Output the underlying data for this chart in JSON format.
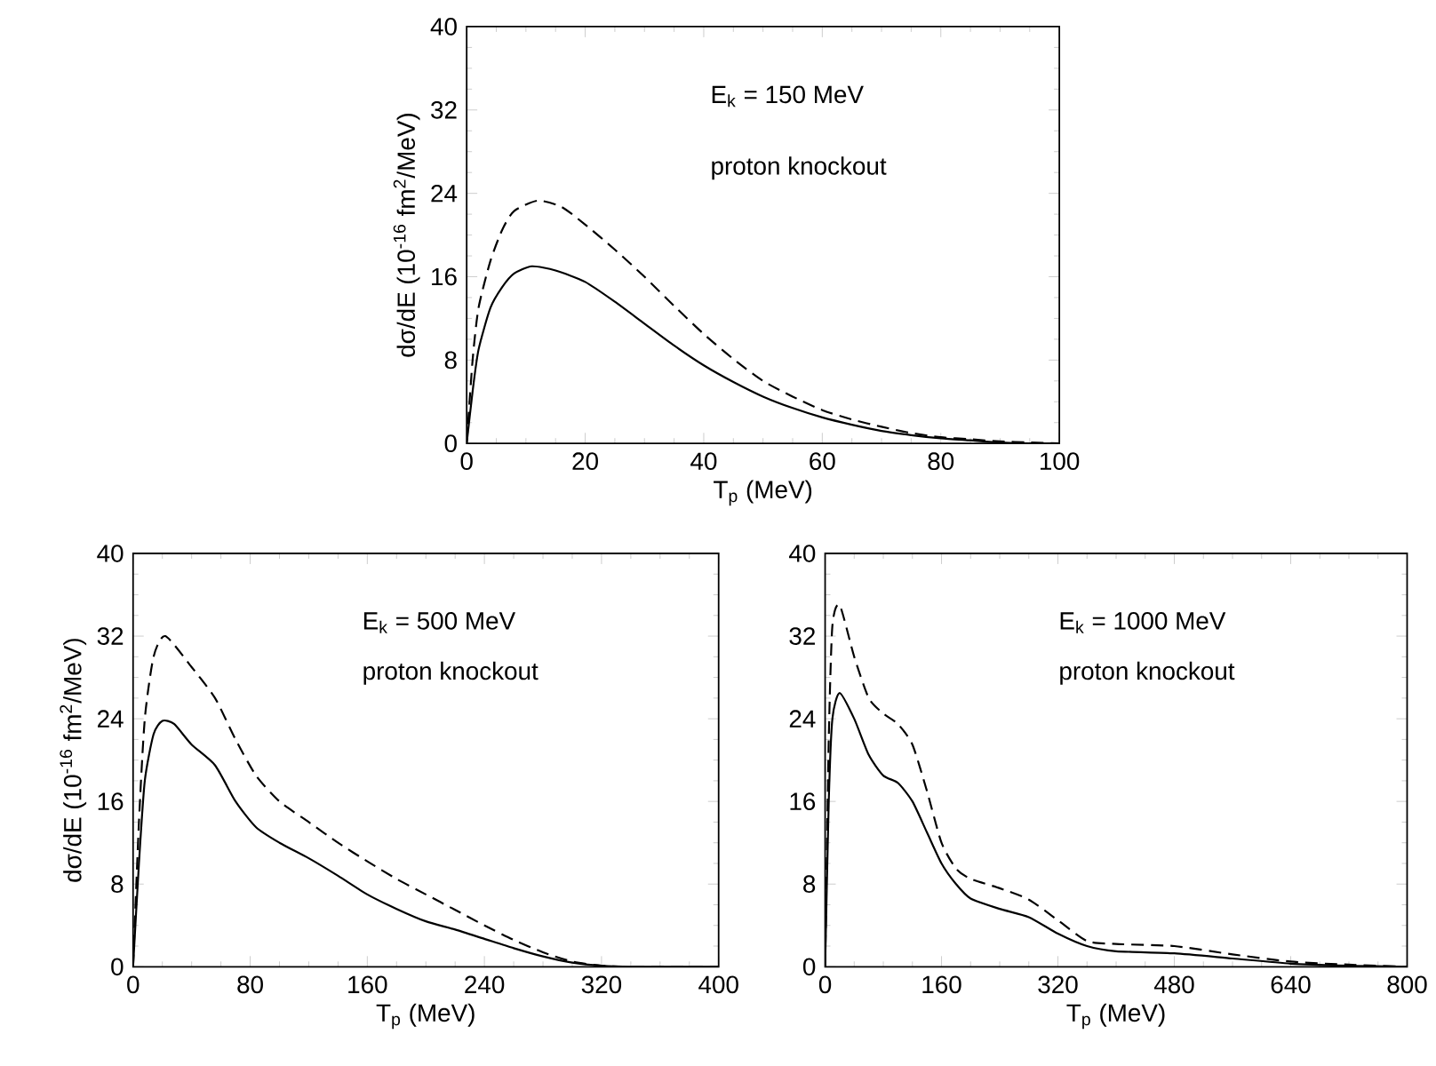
{
  "chart_data": [
    {
      "type": "line",
      "xlabel": "T$_{p}$ (MeV)",
      "ylabel": "dσ/dE (10$^{-16}$ fm$^{2}$/MeV)",
      "annotations": [
        "E$_{k}$ = 150 MeV",
        "proton knockout"
      ],
      "xlim": [
        0,
        100
      ],
      "ylim": [
        0,
        40
      ],
      "xticks": [
        0,
        20,
        40,
        60,
        80,
        100
      ],
      "yticks": [
        0,
        8,
        16,
        24,
        32,
        40
      ],
      "series": [
        {
          "color": "#000000",
          "line_style": "solid",
          "x": [
            0,
            1,
            2,
            4,
            6,
            8,
            11,
            15,
            20,
            25,
            30,
            35,
            40,
            45,
            50,
            55,
            60,
            65,
            70,
            75,
            80,
            85,
            90,
            95,
            100
          ],
          "values": [
            0,
            5,
            9,
            13,
            15,
            16.3,
            17,
            16.6,
            15.5,
            13.6,
            11.5,
            9.4,
            7.5,
            5.9,
            4.5,
            3.4,
            2.5,
            1.8,
            1.2,
            0.8,
            0.5,
            0.3,
            0.1,
            0,
            0
          ]
        },
        {
          "color": "#000000",
          "line_style": "dashed",
          "x": [
            0,
            1,
            2,
            4,
            6,
            8,
            12,
            16,
            20,
            25,
            30,
            35,
            40,
            45,
            50,
            55,
            60,
            65,
            70,
            75,
            80,
            85,
            90,
            95,
            100
          ],
          "values": [
            0,
            8,
            13,
            17.5,
            20.5,
            22.3,
            23.3,
            22.7,
            21,
            18.6,
            16,
            13.2,
            10.5,
            8.1,
            6,
            4.5,
            3.2,
            2.3,
            1.6,
            1,
            0.6,
            0.4,
            0.2,
            0.1,
            0
          ]
        }
      ]
    },
    {
      "type": "line",
      "xlabel": "T$_{p}$ (MeV)",
      "ylabel": "dσ/dE (10$^{-16}$ fm$^{2}$/MeV)",
      "annotations": [
        "E$_{k}$ = 500 MeV",
        "proton knockout"
      ],
      "xlim": [
        0,
        400
      ],
      "ylim": [
        0,
        40
      ],
      "xticks": [
        0,
        80,
        160,
        240,
        320,
        400
      ],
      "yticks": [
        0,
        8,
        16,
        24,
        32,
        40
      ],
      "series": [
        {
          "color": "#000000",
          "line_style": "solid",
          "x": [
            0,
            4,
            8,
            14,
            20,
            28,
            40,
            56,
            70,
            84,
            100,
            120,
            140,
            160,
            180,
            200,
            220,
            240,
            260,
            280,
            300,
            320,
            340,
            400
          ],
          "values": [
            0,
            10,
            18,
            22.5,
            23.8,
            23.5,
            21.5,
            19.5,
            16,
            13.5,
            12,
            10.5,
            8.8,
            7,
            5.6,
            4.4,
            3.6,
            2.7,
            1.8,
            1,
            0.4,
            0.1,
            0,
            0
          ]
        },
        {
          "color": "#000000",
          "line_style": "dashed",
          "x": [
            0,
            4,
            8,
            14,
            22,
            40,
            56,
            70,
            84,
            100,
            120,
            140,
            160,
            180,
            200,
            220,
            240,
            260,
            280,
            300,
            320,
            340,
            400
          ],
          "values": [
            0,
            14,
            24,
            30,
            32,
            29,
            26,
            22,
            18.5,
            16,
            14,
            12,
            10.2,
            8.5,
            7,
            5.5,
            4,
            2.6,
            1.4,
            0.5,
            0.1,
            0,
            0
          ]
        }
      ]
    },
    {
      "type": "line",
      "xlabel": "T$_{p}$ (MeV)",
      "annotations": [
        "E$_{k}$ = 1000 MeV",
        "proton knockout"
      ],
      "xlim": [
        0,
        800
      ],
      "ylim": [
        0,
        40
      ],
      "xticks": [
        0,
        160,
        320,
        480,
        640,
        800
      ],
      "yticks": [
        0,
        8,
        16,
        24,
        32,
        40
      ],
      "series": [
        {
          "color": "#000000",
          "line_style": "solid",
          "x": [
            0,
            5,
            10,
            20,
            40,
            60,
            80,
            100,
            120,
            140,
            160,
            180,
            200,
            240,
            280,
            320,
            360,
            400,
            480,
            560,
            640,
            720,
            800
          ],
          "values": [
            0,
            16,
            24,
            26.5,
            24,
            20.5,
            18.5,
            17.8,
            16,
            13,
            10,
            8,
            6.6,
            5.6,
            4.8,
            3.2,
            2,
            1.5,
            1.3,
            0.8,
            0.3,
            0.1,
            0
          ]
        },
        {
          "color": "#000000",
          "line_style": "dashed",
          "x": [
            0,
            5,
            10,
            20,
            40,
            60,
            80,
            100,
            120,
            140,
            160,
            180,
            200,
            240,
            280,
            320,
            360,
            400,
            480,
            560,
            640,
            720,
            800
          ],
          "values": [
            0,
            22,
            33,
            35,
            30,
            26,
            24.5,
            23.5,
            21.5,
            17,
            12,
            9.5,
            8.5,
            7.6,
            6.5,
            4.5,
            2.5,
            2.2,
            2,
            1.2,
            0.5,
            0.2,
            0
          ]
        }
      ]
    }
  ]
}
